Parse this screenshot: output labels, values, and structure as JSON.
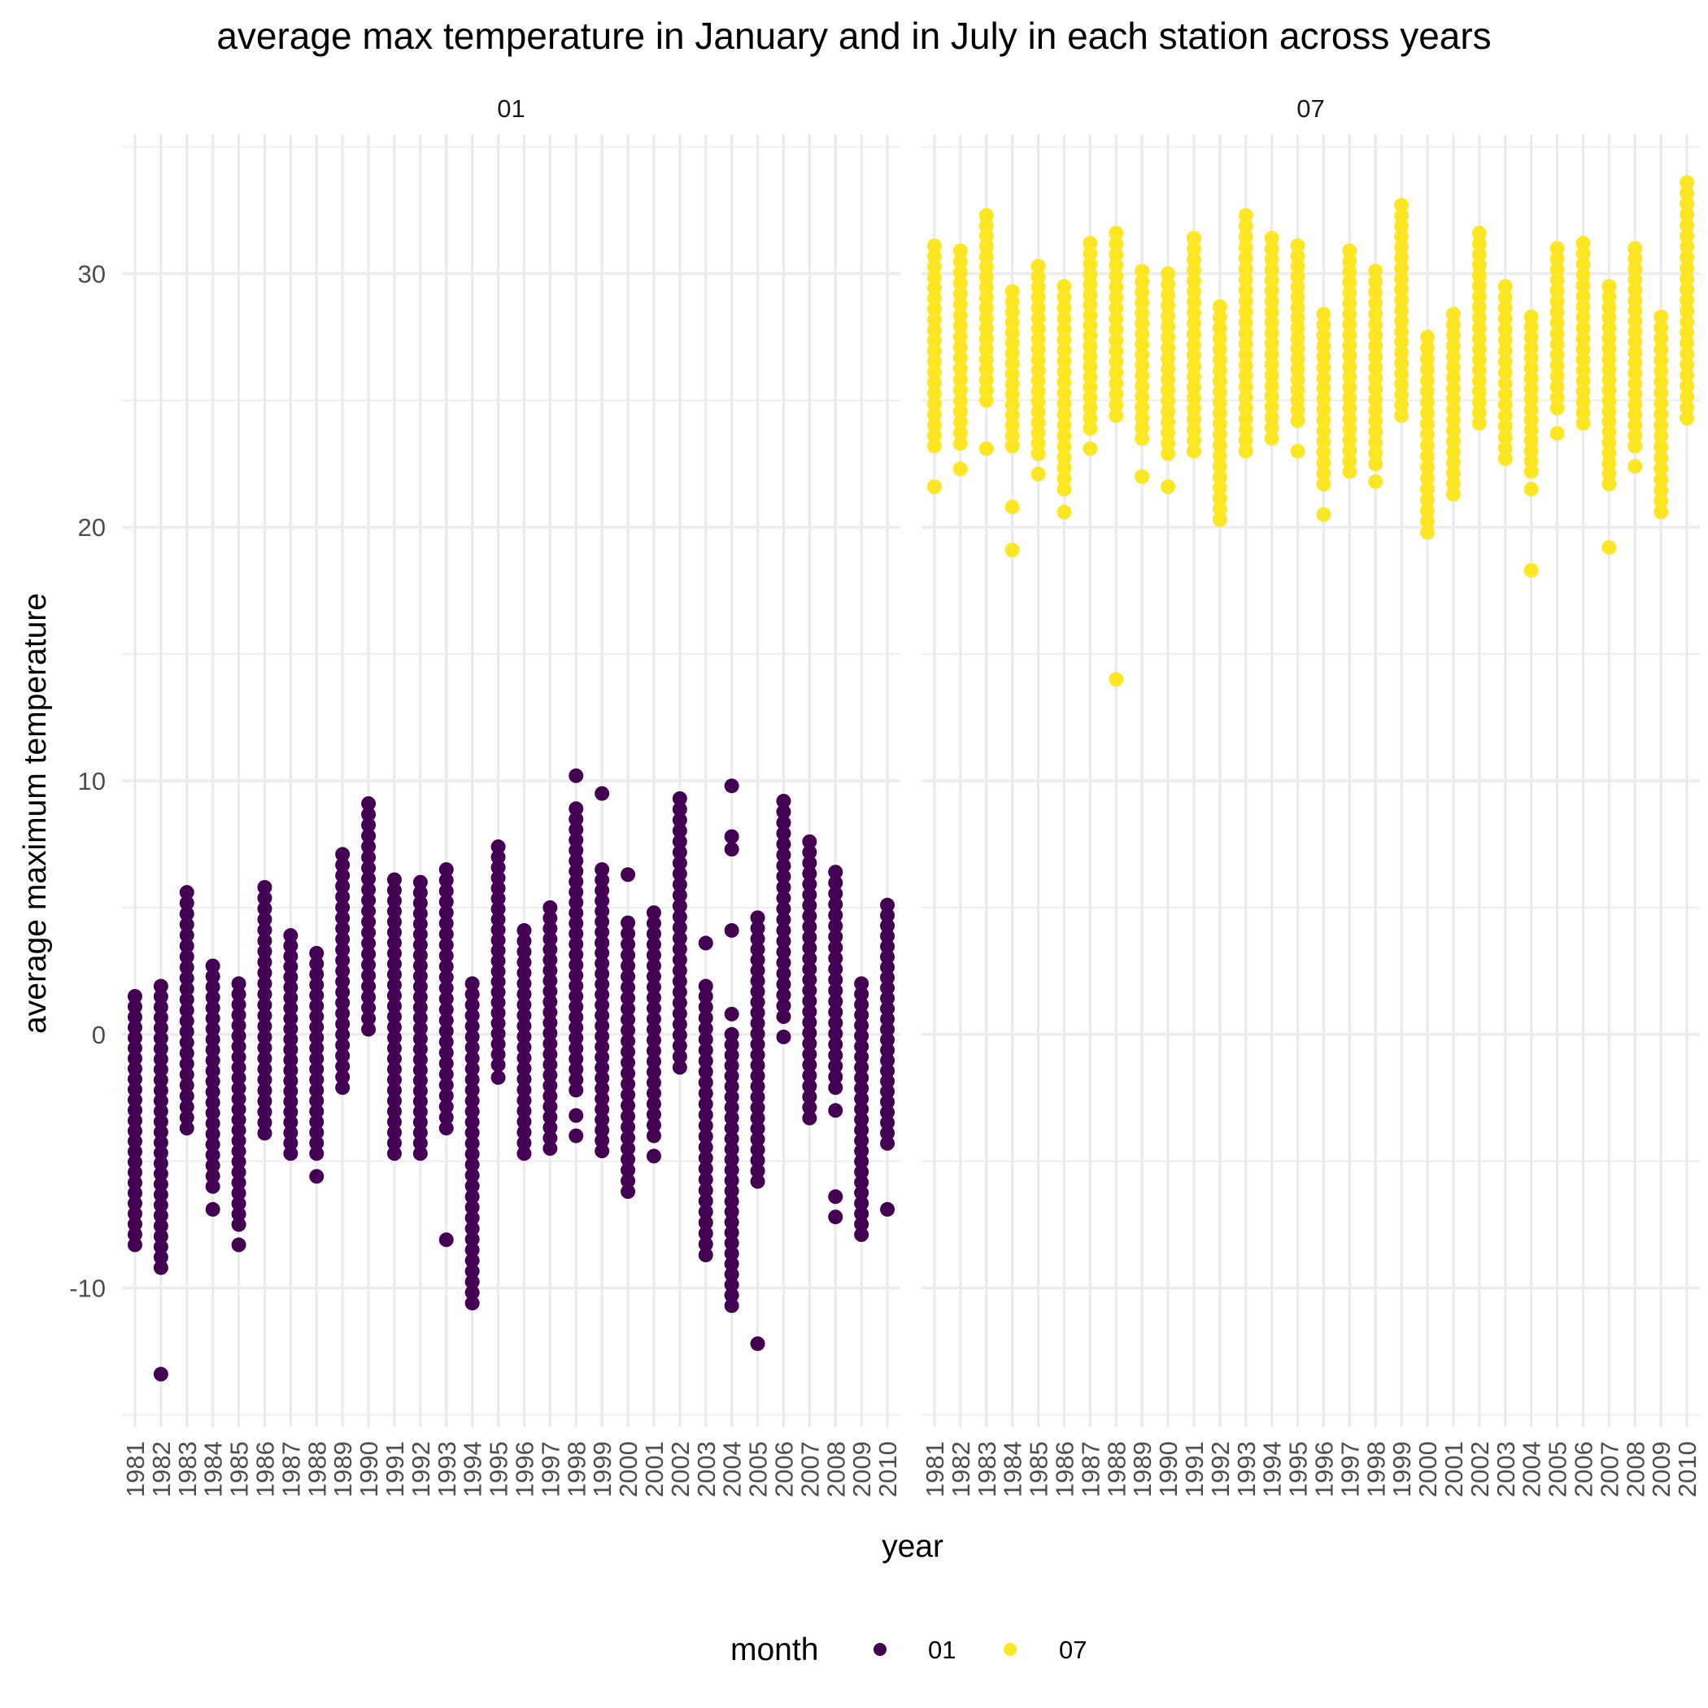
{
  "chart_data": {
    "type": "scatter",
    "title": "average max temperature in January and in July in each station across years",
    "xlabel": "year",
    "ylabel": "average maximum temperature",
    "categories": [
      "1981",
      "1982",
      "1983",
      "1984",
      "1985",
      "1986",
      "1987",
      "1988",
      "1989",
      "1990",
      "1991",
      "1992",
      "1993",
      "1994",
      "1995",
      "1996",
      "1997",
      "1998",
      "1999",
      "2000",
      "2001",
      "2002",
      "2003",
      "2004",
      "2005",
      "2006",
      "2007",
      "2008",
      "2009",
      "2010"
    ],
    "ylim": [
      -15.5,
      35.5
    ],
    "yticks": [
      -10,
      0,
      10,
      20,
      30
    ],
    "ytick_labels": [
      "-10",
      "0",
      "10",
      "20",
      "30"
    ],
    "grid": true,
    "legend": {
      "title": "month",
      "position": "bottom",
      "entries": [
        "01",
        "07"
      ]
    },
    "panels": [
      {
        "strip_label": "01",
        "color": "#440154",
        "ranges": [
          {
            "year": "1981",
            "min": -8.3,
            "max": 1.5
          },
          {
            "year": "1982",
            "min": -9.2,
            "max": 1.9
          },
          {
            "year": "1983",
            "min": -3.7,
            "max": 5.6
          },
          {
            "year": "1984",
            "min": -6.0,
            "max": 2.7
          },
          {
            "year": "1985",
            "min": -7.5,
            "max": 2.0
          },
          {
            "year": "1986",
            "min": -3.9,
            "max": 5.8
          },
          {
            "year": "1987",
            "min": -4.7,
            "max": 3.9
          },
          {
            "year": "1988",
            "min": -4.7,
            "max": 3.2
          },
          {
            "year": "1989",
            "min": -2.1,
            "max": 7.1
          },
          {
            "year": "1990",
            "min": 0.2,
            "max": 9.1
          },
          {
            "year": "1991",
            "min": -4.7,
            "max": 6.1
          },
          {
            "year": "1992",
            "min": -4.7,
            "max": 6.0
          },
          {
            "year": "1993",
            "min": -3.7,
            "max": 6.5
          },
          {
            "year": "1994",
            "min": -10.6,
            "max": 2.0
          },
          {
            "year": "1995",
            "min": -1.2,
            "max": 7.4
          },
          {
            "year": "1996",
            "min": -4.7,
            "max": 4.1
          },
          {
            "year": "1997",
            "min": -4.5,
            "max": 5.0
          },
          {
            "year": "1998",
            "min": -2.2,
            "max": 8.9
          },
          {
            "year": "1999",
            "min": -4.6,
            "max": 6.5
          },
          {
            "year": "2000",
            "min": -6.2,
            "max": 4.4
          },
          {
            "year": "2001",
            "min": -4.0,
            "max": 4.8
          },
          {
            "year": "2002",
            "min": -1.3,
            "max": 9.3
          },
          {
            "year": "2003",
            "min": -8.7,
            "max": 1.5
          },
          {
            "year": "2004",
            "min": -10.7,
            "max": 0.0
          },
          {
            "year": "2005",
            "min": -5.8,
            "max": 4.6
          },
          {
            "year": "2006",
            "min": 0.7,
            "max": 9.2
          },
          {
            "year": "2007",
            "min": -3.3,
            "max": 7.6
          },
          {
            "year": "2008",
            "min": -2.1,
            "max": 6.4
          },
          {
            "year": "2009",
            "min": -7.9,
            "max": 2.0
          },
          {
            "year": "2010",
            "min": -4.3,
            "max": 5.1
          }
        ],
        "extra_points": [
          {
            "year": "1982",
            "y": -13.4
          },
          {
            "year": "1984",
            "y": -6.9
          },
          {
            "year": "1985",
            "y": -8.3
          },
          {
            "year": "1988",
            "y": -5.6
          },
          {
            "year": "1993",
            "y": -8.1
          },
          {
            "year": "1995",
            "y": -1.7
          },
          {
            "year": "1998",
            "y": 10.2
          },
          {
            "year": "1998",
            "y": -3.2
          },
          {
            "year": "1998",
            "y": -4.0
          },
          {
            "year": "1999",
            "y": 9.5
          },
          {
            "year": "1999",
            "y": 3.6
          },
          {
            "year": "2000",
            "y": 6.3
          },
          {
            "year": "2001",
            "y": -4.8
          },
          {
            "year": "2003",
            "y": 3.6
          },
          {
            "year": "2003",
            "y": 1.9
          },
          {
            "year": "2004",
            "y": 9.8
          },
          {
            "year": "2004",
            "y": 7.8
          },
          {
            "year": "2004",
            "y": 7.3
          },
          {
            "year": "2004",
            "y": 4.1
          },
          {
            "year": "2004",
            "y": 0.8
          },
          {
            "year": "2005",
            "y": -12.2
          },
          {
            "year": "2006",
            "y": -0.1
          },
          {
            "year": "2008",
            "y": -3.0
          },
          {
            "year": "2008",
            "y": -6.4
          },
          {
            "year": "2008",
            "y": -7.2
          },
          {
            "year": "2010",
            "y": -6.9
          }
        ]
      },
      {
        "strip_label": "07",
        "color": "#FDE725",
        "ranges": [
          {
            "year": "1981",
            "min": 23.2,
            "max": 31.1
          },
          {
            "year": "1982",
            "min": 23.3,
            "max": 30.9
          },
          {
            "year": "1983",
            "min": 25.0,
            "max": 32.3
          },
          {
            "year": "1984",
            "min": 23.2,
            "max": 29.3
          },
          {
            "year": "1985",
            "min": 22.9,
            "max": 30.3
          },
          {
            "year": "1986",
            "min": 21.5,
            "max": 29.5
          },
          {
            "year": "1987",
            "min": 23.9,
            "max": 31.2
          },
          {
            "year": "1988",
            "min": 24.4,
            "max": 31.6
          },
          {
            "year": "1989",
            "min": 23.5,
            "max": 30.1
          },
          {
            "year": "1990",
            "min": 22.9,
            "max": 30.0
          },
          {
            "year": "1991",
            "min": 23.0,
            "max": 31.4
          },
          {
            "year": "1992",
            "min": 20.3,
            "max": 28.7
          },
          {
            "year": "1993",
            "min": 23.0,
            "max": 32.3
          },
          {
            "year": "1994",
            "min": 23.5,
            "max": 31.4
          },
          {
            "year": "1995",
            "min": 24.2,
            "max": 31.1
          },
          {
            "year": "1996",
            "min": 21.7,
            "max": 28.4
          },
          {
            "year": "1997",
            "min": 22.2,
            "max": 30.9
          },
          {
            "year": "1998",
            "min": 22.5,
            "max": 30.1
          },
          {
            "year": "1999",
            "min": 24.4,
            "max": 32.7
          },
          {
            "year": "2000",
            "min": 19.8,
            "max": 27.5
          },
          {
            "year": "2001",
            "min": 21.3,
            "max": 28.4
          },
          {
            "year": "2002",
            "min": 24.1,
            "max": 31.6
          },
          {
            "year": "2003",
            "min": 22.7,
            "max": 29.5
          },
          {
            "year": "2004",
            "min": 22.2,
            "max": 28.3
          },
          {
            "year": "2005",
            "min": 24.7,
            "max": 31.0
          },
          {
            "year": "2006",
            "min": 24.1,
            "max": 31.2
          },
          {
            "year": "2007",
            "min": 21.7,
            "max": 29.5
          },
          {
            "year": "2008",
            "min": 23.2,
            "max": 31.0
          },
          {
            "year": "2009",
            "min": 20.6,
            "max": 28.3
          },
          {
            "year": "2010",
            "min": 24.3,
            "max": 33.6
          }
        ],
        "extra_points": [
          {
            "year": "1981",
            "y": 21.6
          },
          {
            "year": "1982",
            "y": 22.3
          },
          {
            "year": "1983",
            "y": 23.1
          },
          {
            "year": "1984",
            "y": 20.8
          },
          {
            "year": "1984",
            "y": 19.1
          },
          {
            "year": "1985",
            "y": 22.1
          },
          {
            "year": "1986",
            "y": 20.6
          },
          {
            "year": "1987",
            "y": 23.1
          },
          {
            "year": "1988",
            "y": 14.0
          },
          {
            "year": "1989",
            "y": 22.0
          },
          {
            "year": "1990",
            "y": 21.6
          },
          {
            "year": "1995",
            "y": 23.0
          },
          {
            "year": "1996",
            "y": 20.5
          },
          {
            "year": "1998",
            "y": 21.8
          },
          {
            "year": "2004",
            "y": 21.5
          },
          {
            "year": "2004",
            "y": 18.3
          },
          {
            "year": "2005",
            "y": 23.7
          },
          {
            "year": "2007",
            "y": 19.2
          },
          {
            "year": "2008",
            "y": 22.4
          }
        ]
      }
    ]
  }
}
